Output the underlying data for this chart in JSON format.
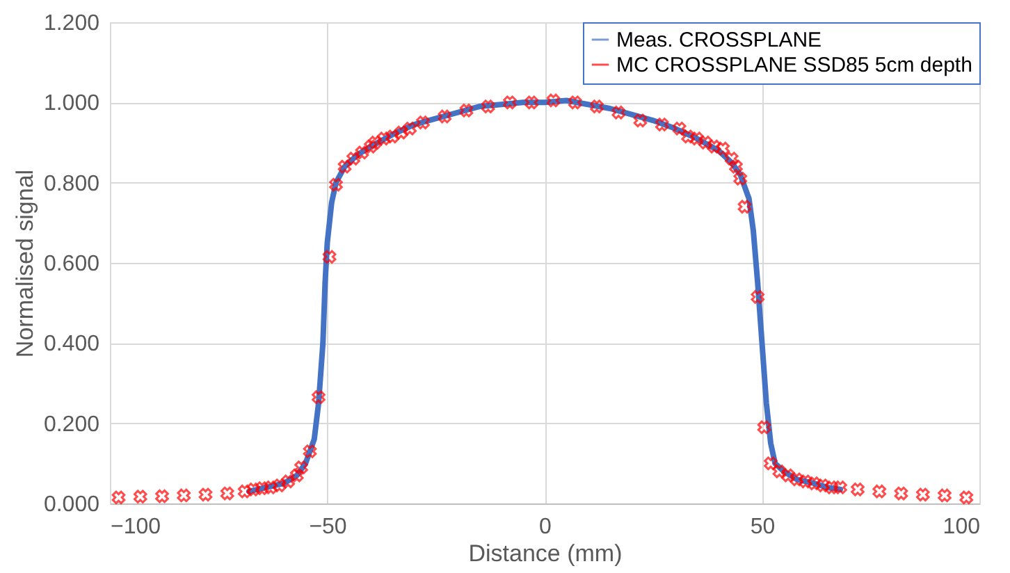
{
  "chart_data": {
    "type": "line",
    "xlabel": "Distance (mm)",
    "ylabel": "Normalised signal",
    "xlim": [
      -100,
      100
    ],
    "xticks": [
      -100,
      -50,
      0,
      50,
      100
    ],
    "ylim": [
      0,
      1.2
    ],
    "yticks": [
      {
        "value": 0,
        "label": "0.000"
      },
      {
        "value": 0.2,
        "label": "0.200"
      },
      {
        "value": 0.4,
        "label": "0.400"
      },
      {
        "value": 0.6,
        "label": "0.600"
      },
      {
        "value": 0.8,
        "label": "0.800"
      },
      {
        "value": 1,
        "label": "1.000"
      },
      {
        "value": 1.2,
        "label": "1.200"
      }
    ],
    "grid": true,
    "legend": "top right",
    "series": [
      {
        "name": "Meas. CROSSPLANE",
        "color": "#4472c4",
        "marker": "none",
        "line_style": "solid",
        "x": [
          -68,
          -64,
          -60,
          -57,
          -55,
          -53,
          -52,
          -51,
          -50.5,
          -50,
          -49,
          -48,
          -46,
          -43,
          -40,
          -35,
          -30,
          -25,
          -20,
          -15,
          -10,
          -5,
          0,
          5,
          10,
          15,
          20,
          25,
          30,
          35,
          40,
          43,
          45,
          47,
          48,
          49,
          50,
          51,
          52,
          53,
          55,
          58,
          62,
          65,
          68
        ],
        "values": [
          0.03,
          0.04,
          0.05,
          0.07,
          0.1,
          0.16,
          0.25,
          0.4,
          0.55,
          0.65,
          0.75,
          0.8,
          0.84,
          0.87,
          0.89,
          0.92,
          0.945,
          0.96,
          0.975,
          0.99,
          0.995,
          1.0,
          1.0,
          1.005,
          0.995,
          0.985,
          0.97,
          0.955,
          0.935,
          0.91,
          0.88,
          0.85,
          0.82,
          0.76,
          0.68,
          0.55,
          0.4,
          0.25,
          0.15,
          0.1,
          0.08,
          0.06,
          0.05,
          0.04,
          0.035
        ]
      },
      {
        "name": "MC CROSSPLANE SSD85 5cm depth",
        "type": "scatter",
        "color": "#ff0000",
        "marker": "cross",
        "x": [
          -98,
          -93,
          -88,
          -83,
          -78,
          -73,
          -69,
          -67,
          -65,
          -63,
          -61,
          -59,
          -57,
          -56,
          -54,
          -52,
          -49.5,
          -48,
          -46,
          -44,
          -42,
          -40,
          -39,
          -37,
          -35,
          -33,
          -31,
          -28,
          -23,
          -18,
          -13,
          -8,
          -3,
          2,
          7,
          12,
          17,
          22,
          27,
          31,
          33,
          35,
          37,
          39,
          41,
          43,
          44,
          45,
          46,
          49,
          50.5,
          52,
          54,
          56,
          58,
          60,
          62,
          64,
          66,
          68,
          72,
          77,
          82,
          87,
          92,
          97
        ],
        "values": [
          0.015,
          0.017,
          0.018,
          0.02,
          0.022,
          0.025,
          0.03,
          0.035,
          0.038,
          0.04,
          0.045,
          0.055,
          0.07,
          0.09,
          0.13,
          0.265,
          0.615,
          0.795,
          0.84,
          0.86,
          0.875,
          0.89,
          0.9,
          0.91,
          0.915,
          0.925,
          0.935,
          0.95,
          0.965,
          0.98,
          0.99,
          1.0,
          1.0,
          1.005,
          1.0,
          0.99,
          0.975,
          0.955,
          0.945,
          0.935,
          0.915,
          0.91,
          0.9,
          0.89,
          0.885,
          0.86,
          0.84,
          0.81,
          0.74,
          0.515,
          0.19,
          0.1,
          0.08,
          0.07,
          0.06,
          0.055,
          0.05,
          0.045,
          0.04,
          0.04,
          0.035,
          0.03,
          0.025,
          0.022,
          0.02,
          0.015
        ]
      }
    ]
  }
}
